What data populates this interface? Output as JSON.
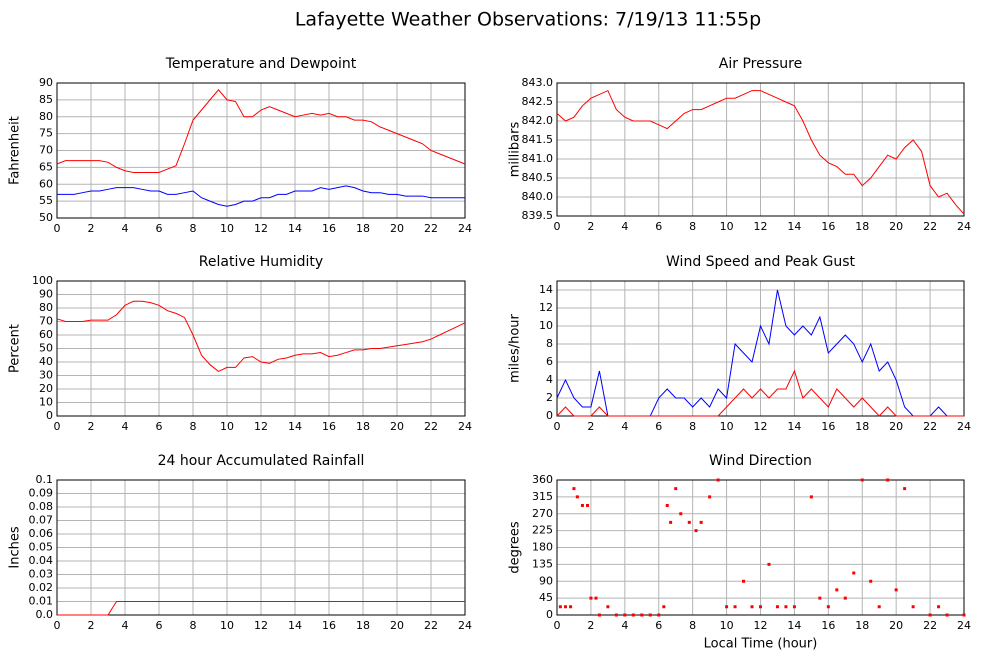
{
  "title": "Lafayette Weather Observations: 7/19/13 11:55p",
  "chart_data": [
    {
      "type": "line",
      "title": "Temperature and Dewpoint",
      "ylabel": "Fahrenheit",
      "grid": true,
      "x": [
        0,
        0.5,
        1,
        1.5,
        2,
        2.5,
        3,
        3.5,
        4,
        4.5,
        5,
        5.5,
        6,
        6.5,
        7,
        7.5,
        8,
        8.5,
        9,
        9.5,
        10,
        10.5,
        11,
        11.5,
        12,
        12.5,
        13,
        13.5,
        14,
        14.5,
        15,
        15.5,
        16,
        16.5,
        17,
        17.5,
        18,
        18.5,
        19,
        19.5,
        20,
        20.5,
        21,
        21.5,
        22,
        22.5,
        23,
        23.5,
        24
      ],
      "series": [
        {
          "color": "#ff0000",
          "values": [
            66,
            67,
            67,
            67,
            67,
            67,
            66.5,
            65,
            64,
            63.5,
            63.5,
            63.5,
            63.5,
            64.5,
            65.5,
            72,
            79,
            82,
            85,
            88,
            85,
            84.5,
            80,
            80,
            82,
            83,
            82,
            81,
            80,
            80.5,
            81,
            80.5,
            81,
            80,
            80,
            79,
            79,
            78.5,
            77,
            76,
            75,
            74,
            73,
            72,
            70,
            69,
            68,
            67,
            66
          ]
        },
        {
          "color": "#0000ff",
          "values": [
            57,
            57,
            57,
            57.5,
            58,
            58,
            58.5,
            59,
            59,
            59,
            58.5,
            58,
            58,
            57,
            57,
            57.5,
            58,
            56,
            55,
            54,
            53.5,
            54,
            55,
            55,
            56,
            56,
            57,
            57,
            58,
            58,
            58,
            59,
            58.5,
            59,
            59.5,
            59,
            58,
            57.5,
            57.5,
            57,
            57,
            56.5,
            56.5,
            56.5,
            56,
            56,
            56,
            56,
            56
          ]
        }
      ],
      "xlim": [
        0,
        24
      ],
      "xticks": [
        0,
        2,
        4,
        6,
        8,
        10,
        12,
        14,
        16,
        18,
        20,
        22,
        24
      ],
      "ylim": [
        50,
        90
      ],
      "yticks": [
        50,
        55,
        60,
        65,
        70,
        75,
        80,
        85,
        90
      ]
    },
    {
      "type": "line",
      "title": "Air Pressure",
      "ylabel": "millibars",
      "grid": true,
      "x": [
        0,
        0.5,
        1,
        1.5,
        2,
        2.5,
        3,
        3.5,
        4,
        4.5,
        5,
        5.5,
        6,
        6.5,
        7,
        7.5,
        8,
        8.5,
        9,
        9.5,
        10,
        10.5,
        11,
        11.5,
        12,
        12.5,
        13,
        13.5,
        14,
        14.5,
        15,
        15.5,
        16,
        16.5,
        17,
        17.5,
        18,
        18.5,
        19,
        19.5,
        20,
        20.5,
        21,
        21.5,
        22,
        22.5,
        23,
        23.5,
        24
      ],
      "series": [
        {
          "color": "#ff0000",
          "values": [
            842.2,
            842.0,
            842.1,
            842.4,
            842.6,
            842.7,
            842.8,
            842.3,
            842.1,
            842.0,
            842.0,
            842.0,
            841.9,
            841.8,
            842.0,
            842.2,
            842.3,
            842.3,
            842.4,
            842.5,
            842.6,
            842.6,
            842.7,
            842.8,
            842.8,
            842.7,
            842.6,
            842.5,
            842.4,
            842.0,
            841.5,
            841.1,
            840.9,
            840.8,
            840.6,
            840.6,
            840.3,
            840.5,
            840.8,
            841.1,
            841.0,
            841.3,
            841.5,
            841.2,
            840.3,
            840.0,
            840.1,
            839.8,
            839.55
          ]
        }
      ],
      "xlim": [
        0,
        24
      ],
      "xticks": [
        0,
        2,
        4,
        6,
        8,
        10,
        12,
        14,
        16,
        18,
        20,
        22,
        24
      ],
      "ylim": [
        839.5,
        843
      ],
      "yticks": [
        839.5,
        {
          "value": 840,
          "label": "840.0"
        },
        840.5,
        {
          "value": 841,
          "label": "841.0"
        },
        841.5,
        {
          "value": 842,
          "label": "842.0"
        },
        842.5,
        {
          "value": 843,
          "label": "843.0"
        }
      ]
    },
    {
      "type": "line",
      "title": "Relative Humidity",
      "ylabel": "Percent",
      "grid": true,
      "x": [
        0,
        0.5,
        1,
        1.5,
        2,
        2.5,
        3,
        3.5,
        4,
        4.5,
        5,
        5.5,
        6,
        6.5,
        7,
        7.5,
        8,
        8.5,
        9,
        9.5,
        10,
        10.5,
        11,
        11.5,
        12,
        12.5,
        13,
        13.5,
        14,
        14.5,
        15,
        15.5,
        16,
        16.5,
        17,
        17.5,
        18,
        18.5,
        19,
        19.5,
        20,
        20.5,
        21,
        21.5,
        22,
        22.5,
        23,
        23.5,
        24
      ],
      "series": [
        {
          "color": "#ff0000",
          "values": [
            72,
            70,
            70,
            70,
            71,
            71,
            71,
            75,
            82,
            85,
            85,
            84,
            82,
            78,
            76,
            73,
            60,
            45,
            38,
            33,
            36,
            36,
            43,
            44,
            40,
            39,
            42,
            43,
            45,
            46,
            46,
            47,
            44,
            45,
            47,
            49,
            49,
            50,
            50,
            51,
            52,
            53,
            54,
            55,
            57,
            60,
            63,
            66,
            69
          ]
        }
      ],
      "xlim": [
        0,
        24
      ],
      "xticks": [
        0,
        2,
        4,
        6,
        8,
        10,
        12,
        14,
        16,
        18,
        20,
        22,
        24
      ],
      "ylim": [
        0,
        100
      ],
      "yticks": [
        0,
        10,
        20,
        30,
        40,
        50,
        60,
        70,
        80,
        90,
        100
      ]
    },
    {
      "type": "line",
      "title": "Wind Speed and Peak Gust",
      "ylabel": "miles/hour",
      "grid": true,
      "x": [
        0,
        0.5,
        1,
        1.5,
        2,
        2.5,
        3,
        3.5,
        4,
        4.5,
        5,
        5.5,
        6,
        6.5,
        7,
        7.5,
        8,
        8.5,
        9,
        9.5,
        10,
        10.5,
        11,
        11.5,
        12,
        12.5,
        13,
        13.5,
        14,
        14.5,
        15,
        15.5,
        16,
        16.5,
        17,
        17.5,
        18,
        18.5,
        19,
        19.5,
        20,
        20.5,
        21,
        21.5,
        22,
        22.5,
        23,
        23.5,
        24
      ],
      "series": [
        {
          "color": "#0000ff",
          "values": [
            2,
            4,
            2,
            1,
            1,
            5,
            0,
            0,
            0,
            0,
            0,
            0,
            2,
            3,
            2,
            2,
            1,
            2,
            1,
            3,
            2,
            8,
            7,
            6,
            10,
            8,
            14,
            10,
            9,
            10,
            9,
            11,
            7,
            8,
            9,
            8,
            6,
            8,
            5,
            6,
            4,
            1,
            0,
            0,
            0,
            1,
            0,
            0,
            0
          ]
        },
        {
          "color": "#ff0000",
          "values": [
            0,
            1,
            0,
            0,
            0,
            1,
            0,
            0,
            0,
            0,
            0,
            0,
            0,
            0,
            0,
            0,
            0,
            0,
            0,
            0,
            1,
            2,
            3,
            2,
            3,
            2,
            3,
            3,
            5,
            2,
            3,
            2,
            1,
            3,
            2,
            1,
            2,
            1,
            0,
            1,
            0,
            0,
            0,
            0,
            0,
            0,
            0,
            0,
            0
          ]
        }
      ],
      "xlim": [
        0,
        24
      ],
      "xticks": [
        0,
        2,
        4,
        6,
        8,
        10,
        12,
        14,
        16,
        18,
        20,
        22,
        24
      ],
      "ylim": [
        0,
        15
      ],
      "yticks": [
        0,
        2,
        4,
        6,
        8,
        10,
        12,
        14
      ]
    },
    {
      "type": "line",
      "title": "24 hour Accumulated Rainfall",
      "ylabel": "Inches",
      "grid": true,
      "x": [
        0,
        0.5,
        1,
        1.5,
        2,
        2.5,
        3,
        3.5,
        4,
        4.5,
        5,
        5.5,
        6,
        6.5,
        7,
        7.5,
        8,
        8.5,
        9,
        9.5,
        10,
        10.5,
        11,
        11.5,
        12,
        12.5,
        13,
        13.5,
        14,
        14.5,
        15,
        15.5,
        16,
        16.5,
        17,
        17.5,
        18,
        18.5,
        19,
        19.5,
        20,
        20.5,
        21,
        21.5,
        22,
        22.5,
        23,
        23.5,
        24
      ],
      "series": [
        {
          "color": "#ff0000",
          "values": [
            0,
            0,
            0,
            0,
            0,
            0,
            0,
            0.01,
            0.01,
            0.01,
            0.01,
            0.01,
            0.01,
            0.01,
            0.01,
            0.01,
            0.01,
            0.01,
            0.01,
            0.01,
            0.01,
            0.01,
            0.01,
            0.01,
            0.01,
            0.01,
            0.01,
            0.01,
            0.01,
            0.01,
            0.01,
            0.01,
            0.01,
            0.01,
            0.01,
            0.01,
            0.01,
            0.01,
            0.01,
            0.01,
            0.01,
            0.01,
            0.01,
            0.01,
            0.01,
            0.01,
            0.01,
            0.01,
            0.01
          ]
        }
      ],
      "xlim": [
        0,
        24
      ],
      "xticks": [
        0,
        2,
        4,
        6,
        8,
        10,
        12,
        14,
        16,
        18,
        20,
        22,
        24
      ],
      "ylim": [
        0,
        0.1
      ],
      "yticks": [
        {
          "value": 0,
          "label": "0.0"
        },
        0.01,
        0.02,
        0.03,
        0.04,
        0.05,
        0.06,
        0.07,
        0.08,
        0.09,
        0.1
      ]
    },
    {
      "type": "scatter",
      "title": "Wind Direction",
      "ylabel": "degrees",
      "xlabel": "Local Time (hour)",
      "grid": true,
      "x": [
        0.2,
        0.5,
        0.8,
        1,
        1.2,
        1.5,
        1.8,
        2,
        2.3,
        2.5,
        3,
        3.5,
        4,
        4.5,
        5,
        5.5,
        6,
        6.3,
        6.5,
        6.7,
        7,
        7.3,
        7.8,
        8.2,
        8.5,
        9,
        9.5,
        10,
        10.5,
        11,
        11.5,
        12,
        12.5,
        13,
        13.5,
        14,
        15,
        15.5,
        16,
        16.5,
        17,
        17.5,
        18,
        18.5,
        19,
        19.5,
        20,
        20.5,
        21,
        22,
        22.5,
        23,
        24
      ],
      "series": [
        {
          "color": "#ff0000",
          "values": [
            22,
            22,
            22,
            337,
            315,
            292,
            292,
            45,
            45,
            0,
            22,
            0,
            0,
            0,
            0,
            0,
            0,
            22,
            292,
            247,
            337,
            270,
            247,
            225,
            247,
            315,
            360,
            22,
            22,
            90,
            22,
            22,
            135,
            22,
            22,
            22,
            315,
            45,
            22,
            67,
            45,
            112,
            360,
            90,
            22,
            360,
            67,
            337,
            22,
            0,
            22,
            0,
            0
          ]
        }
      ],
      "xlim": [
        0,
        24
      ],
      "xticks": [
        0,
        2,
        4,
        6,
        8,
        10,
        12,
        14,
        16,
        18,
        20,
        22,
        24
      ],
      "ylim": [
        0,
        360
      ],
      "yticks": [
        0,
        45,
        90,
        135,
        180,
        225,
        270,
        315,
        360
      ]
    }
  ]
}
